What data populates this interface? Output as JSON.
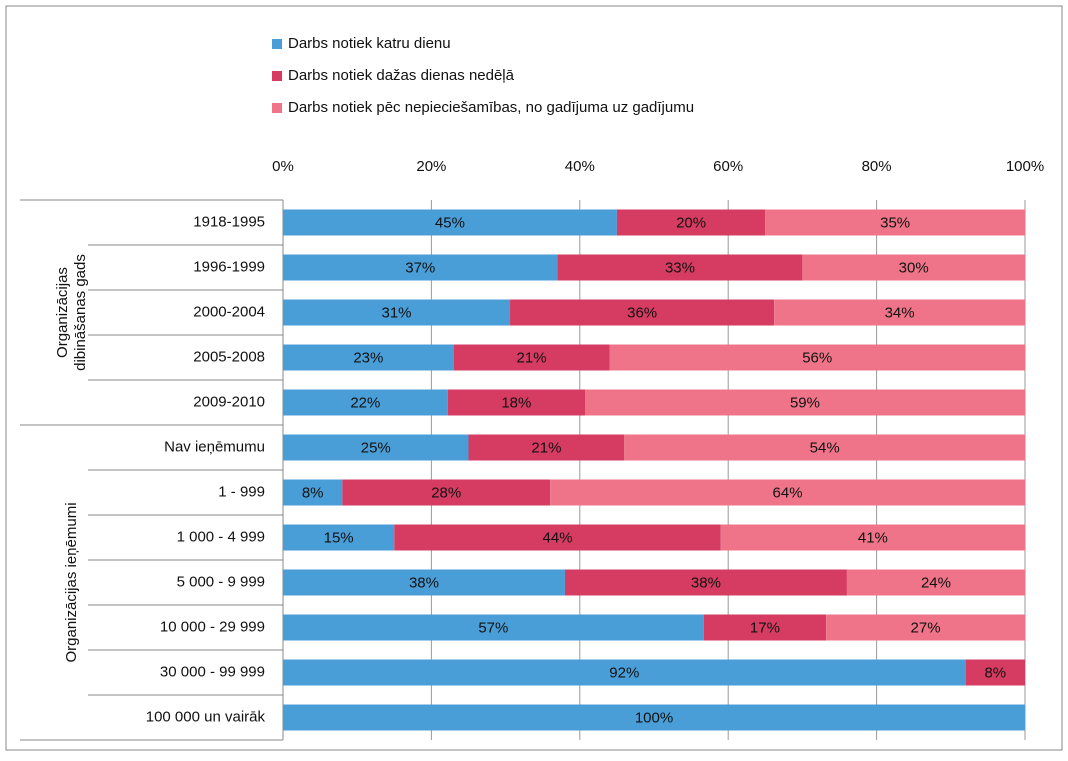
{
  "chart_data": {
    "type": "stacked-barh",
    "groups": [
      {
        "label": [
          "Organizācijas",
          "dibināšanas gads"
        ],
        "categories": [
          "1918-1995",
          "1996-1999",
          "2000-2004",
          "2005-2008",
          "2009-2010"
        ]
      },
      {
        "label": [
          "Organizācijas ieņēmumi"
        ],
        "categories": [
          "Nav ieņēmumu",
          "1 - 999",
          "1 000 - 4 999",
          "5 000 - 9 999",
          "10 000 - 29 999",
          "30 000 - 99 999",
          "100 000 un vairāk"
        ]
      }
    ],
    "series": [
      {
        "name": "Darbs notiek katru dienu",
        "color": "#4a9ed8",
        "values": [
          45,
          37,
          30.6,
          23,
          22.2,
          25,
          8,
          15,
          38,
          56.7,
          92,
          100
        ],
        "value_labels": [
          "45%",
          "37%",
          "31%",
          "23%",
          "22%",
          "25%",
          "8%",
          "15%",
          "38%",
          "57%",
          "92%",
          "100%"
        ]
      },
      {
        "name": "Darbs notiek dažas dienas nedēļā",
        "color": "#d63b62",
        "values": [
          20,
          33,
          35.6,
          21,
          18.5,
          21,
          28,
          44,
          38,
          16.5,
          8,
          0
        ],
        "value_labels": [
          "20%",
          "33%",
          "36%",
          "21%",
          "18%",
          "21%",
          "28%",
          "44%",
          "38%",
          "17%",
          "8%",
          null
        ]
      },
      {
        "name": "Darbs notiek pēc nepieciešamības, no gadījuma uz gadījumu",
        "color": "#f07489",
        "values": [
          35,
          30,
          33.8,
          56,
          59.3,
          54,
          64,
          41,
          24,
          26.8,
          0,
          0
        ],
        "value_labels": [
          "35%",
          "30%",
          "34%",
          "56%",
          "59%",
          "54%",
          "64%",
          "41%",
          "24%",
          "27%",
          null,
          null
        ]
      }
    ],
    "xlim": [
      0,
      100
    ],
    "xticks": [
      {
        "value": 0,
        "label": "0%"
      },
      {
        "value": 20,
        "label": "20%"
      },
      {
        "value": 40,
        "label": "40%"
      },
      {
        "value": 60,
        "label": "60%"
      },
      {
        "value": 80,
        "label": "80%"
      },
      {
        "value": 100,
        "label": "100%"
      }
    ],
    "grid": true
  }
}
